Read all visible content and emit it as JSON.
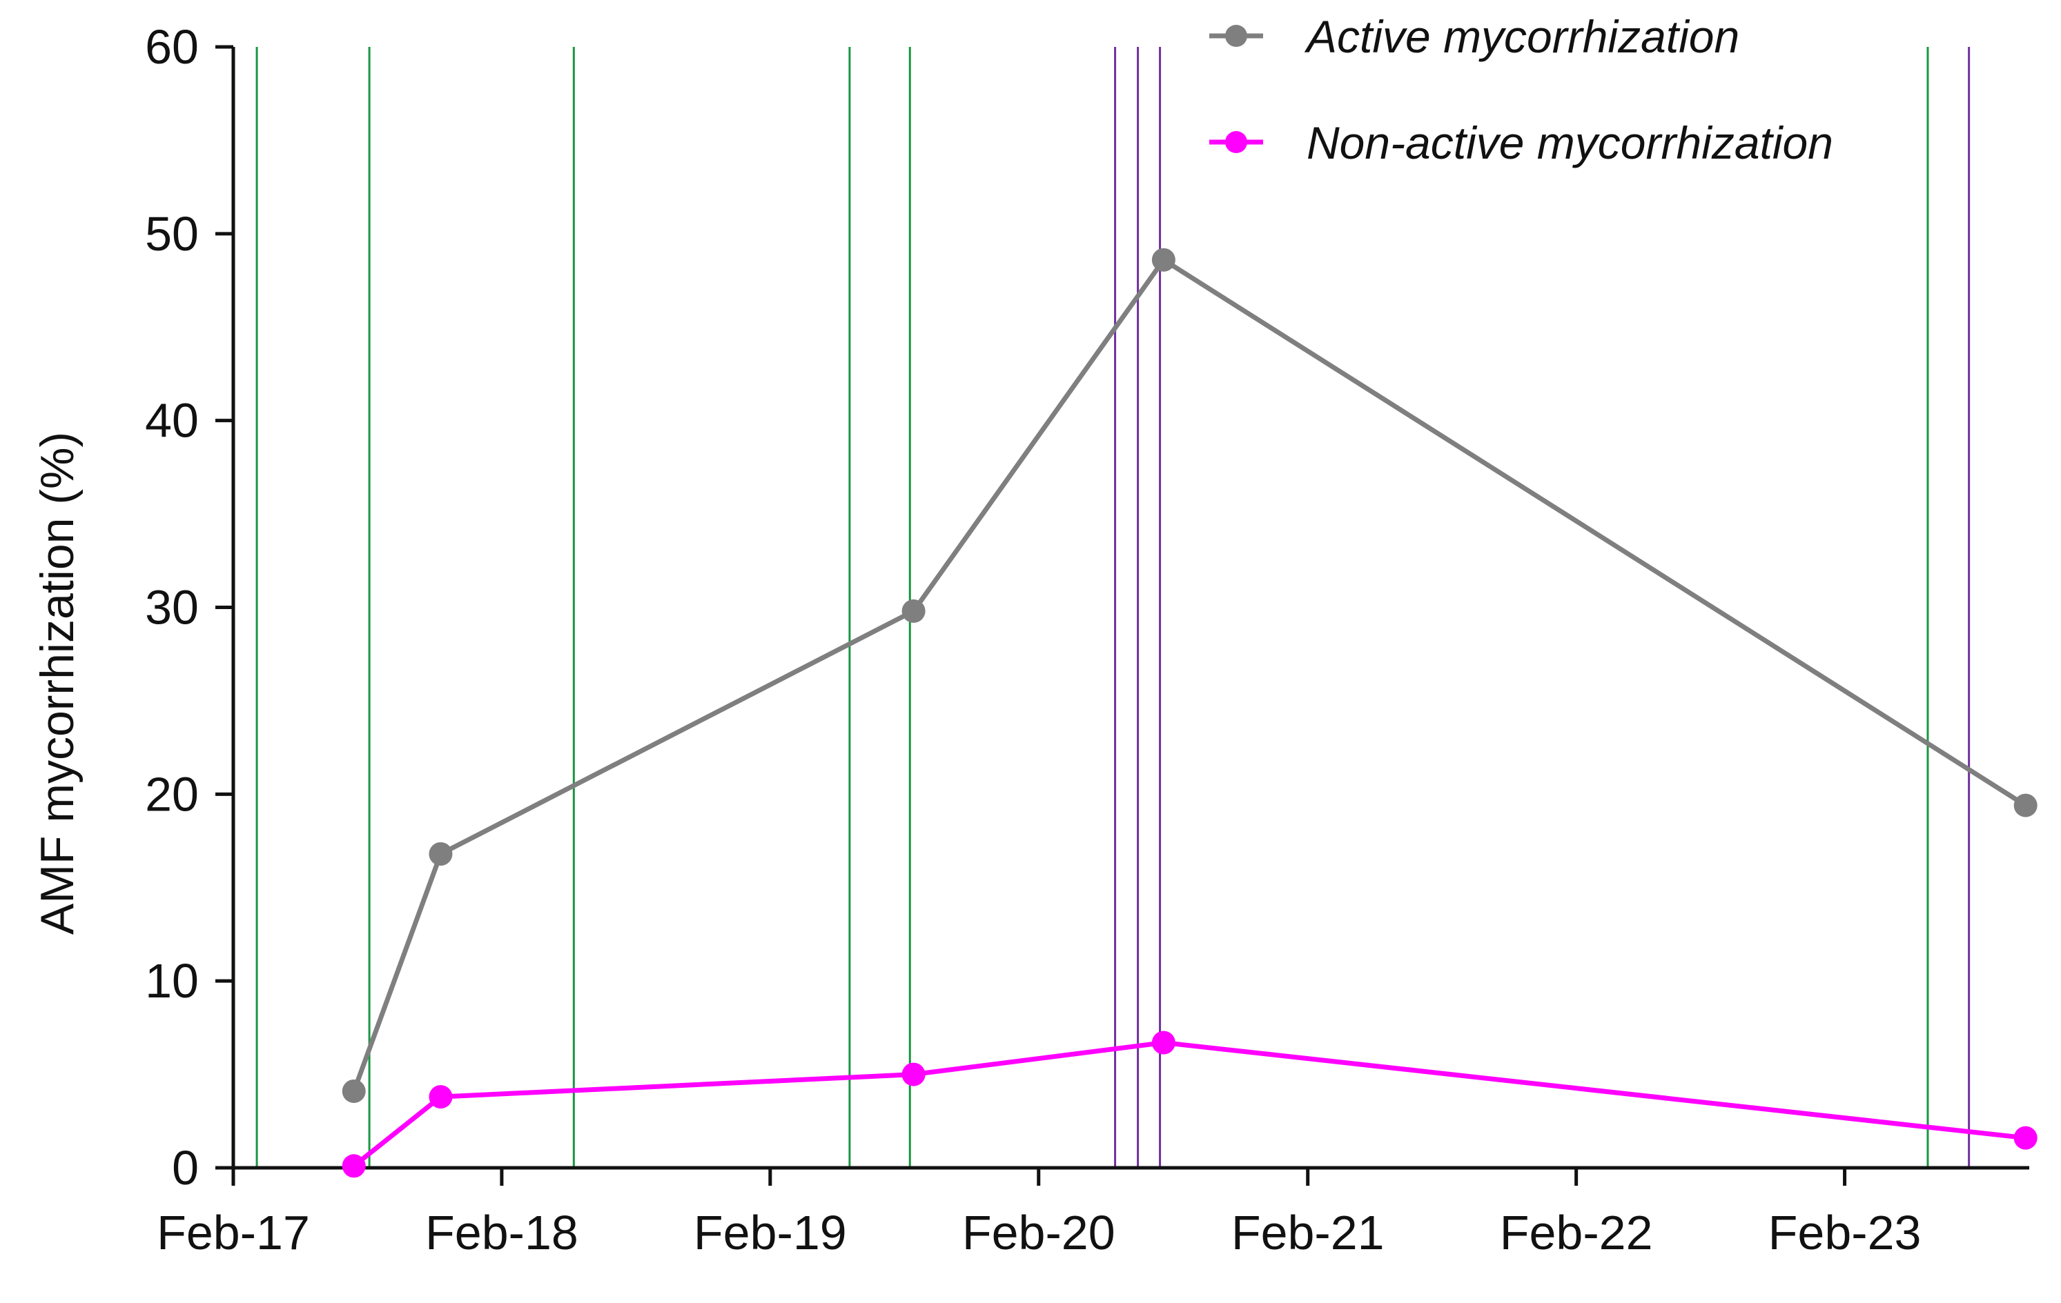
{
  "chart_data": {
    "type": "line",
    "title": "",
    "xlabel": "",
    "ylabel": "AMF mycorrhization (%)",
    "x_axis_type": "date",
    "xlim": [
      "2017-02-01",
      "2023-10-10"
    ],
    "ylim": [
      0,
      60
    ],
    "x_ticks": [
      "2017-02-01",
      "2018-02-01",
      "2019-02-01",
      "2020-02-01",
      "2021-02-01",
      "2022-02-01",
      "2023-02-01"
    ],
    "x_tick_labels": [
      "Feb-17",
      "Feb-18",
      "Feb-19",
      "Feb-20",
      "Feb-21",
      "Feb-22",
      "Feb-23"
    ],
    "y_ticks": [
      0,
      10,
      20,
      30,
      40,
      50,
      60
    ],
    "y_tick_labels": [
      "0",
      "10",
      "20",
      "30",
      "40",
      "50",
      "60"
    ],
    "grid": false,
    "legend_position": "top-right",
    "series": [
      {
        "name": "Active mycorrhization",
        "color": "#7f7f7f",
        "marker": "circle",
        "points": [
          {
            "x": "2017-07-15",
            "y": 4.1
          },
          {
            "x": "2017-11-10",
            "y": 16.8
          },
          {
            "x": "2019-08-15",
            "y": 29.8
          },
          {
            "x": "2020-07-20",
            "y": 48.6
          },
          {
            "x": "2023-10-05",
            "y": 19.4
          }
        ]
      },
      {
        "name": "Non-active mycorrhization",
        "color": "#ff00ff",
        "marker": "circle",
        "points": [
          {
            "x": "2017-07-15",
            "y": 0.1
          },
          {
            "x": "2017-11-10",
            "y": 3.8
          },
          {
            "x": "2019-08-15",
            "y": 5.0
          },
          {
            "x": "2020-07-20",
            "y": 6.7
          },
          {
            "x": "2023-10-05",
            "y": 1.6
          }
        ]
      }
    ],
    "reference_lines": {
      "green": {
        "color": "#1a9641",
        "x": [
          "2017-03-05",
          "2017-08-05",
          "2018-05-10",
          "2019-05-20",
          "2019-08-10",
          "2023-05-25"
        ]
      },
      "purple": {
        "color": "#7030a0",
        "x": [
          "2020-05-15",
          "2020-06-15",
          "2020-07-15",
          "2023-07-20"
        ]
      }
    }
  }
}
